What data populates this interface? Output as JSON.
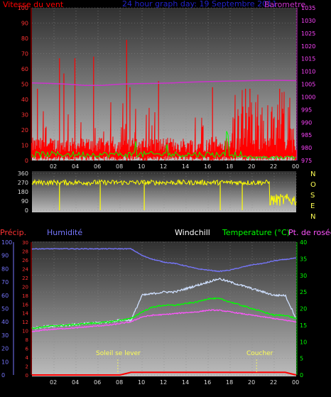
{
  "colors": {
    "background": "#000000",
    "wind": "#ff0000",
    "wind_avg": "#00ff00",
    "pressure": "#cc33cc",
    "wind_dir": "#ffff00",
    "precip": "#ff0000",
    "humidity": "#7777ff",
    "windchill": "#ffffff",
    "temperature": "#00ff00",
    "dewpoint": "#ff55ff",
    "temperature_box": "#cfe0ff"
  },
  "chart_data": [
    {
      "type": "line",
      "title": "24 hour graph day: 19 Septembre 2011",
      "ylabel_left": "Vitesse du vent",
      "ylabel_right": "Barometre",
      "x_ticks": [
        "02",
        "04",
        "06",
        "08",
        "10",
        "12",
        "14",
        "16",
        "18",
        "20",
        "22",
        "00"
      ],
      "ylim_left": [
        0,
        100
      ],
      "yticks_left": [
        "0",
        "10",
        "20",
        "30",
        "40",
        "50",
        "60",
        "70",
        "80",
        "90",
        "100"
      ],
      "ylim_right": [
        975,
        1035
      ],
      "yticks_right": [
        "975",
        "980",
        "985",
        "990",
        "995",
        "1000",
        "1005",
        "1010",
        "1015",
        "1020",
        "1025",
        "1030",
        "1035"
      ],
      "pressure": [
        1005.5,
        1005.3,
        1005.0,
        1004.5,
        1004.5,
        1005.0,
        1005.2,
        1005.3,
        1005.5,
        1005.8,
        1006.0,
        1006.2,
        1006.3,
        1006.5,
        1006.5,
        1006.4
      ],
      "wind_spikes": [
        {
          "hour": 0.5,
          "value": 47
        },
        {
          "hour": 2.5,
          "value": 67
        },
        {
          "hour": 2.9,
          "value": 57
        },
        {
          "hour": 3.9,
          "value": 67
        },
        {
          "hour": 5.6,
          "value": 68
        },
        {
          "hour": 8.6,
          "value": 79
        },
        {
          "hour": 8.9,
          "value": 48
        },
        {
          "hour": 11.5,
          "value": 52
        },
        {
          "hour": 16.4,
          "value": 48
        },
        {
          "hour": 19.4,
          "value": 47
        },
        {
          "hour": 19.8,
          "value": 47
        },
        {
          "hour": 22.5,
          "value": 47
        }
      ]
    },
    {
      "type": "line",
      "ylabel_right": "N O S E N",
      "direction_letters": [
        "N",
        "O",
        "S",
        "E",
        "N"
      ],
      "x_ticks": [],
      "ylim": [
        0,
        360
      ],
      "yticks": [
        "0",
        "90",
        "180",
        "270",
        "360"
      ],
      "wind_dir_base": 270
    },
    {
      "type": "line",
      "legend": {
        "precip": "Précip.",
        "humidity": "Humidité",
        "windchill": "Windchill",
        "temperature": "Temperature (°C)",
        "dewpoint": "Pt. de rosée"
      },
      "x_ticks": [
        "02",
        "04",
        "06",
        "08",
        "10",
        "12",
        "14",
        "16",
        "18",
        "20",
        "22",
        "00"
      ],
      "ylim_humidity": [
        0,
        100
      ],
      "yticks_humidity": [
        "0",
        "10",
        "20",
        "30",
        "40",
        "50",
        "60",
        "70",
        "80",
        "90",
        "100"
      ],
      "ylim_precip": [
        0,
        30
      ],
      "yticks_precip": [
        "0",
        "2",
        "4",
        "6",
        "8",
        "10",
        "12",
        "14",
        "16",
        "18",
        "20",
        "22",
        "24",
        "26",
        "28",
        "30"
      ],
      "ylim_temp": [
        0,
        40
      ],
      "yticks_temp": [
        "0",
        "5",
        "10",
        "15",
        "20",
        "25",
        "30",
        "35",
        "40"
      ],
      "annotations": {
        "sunrise": "Soleil se lever",
        "sunset": "Coucher"
      },
      "hours": [
        0,
        1,
        2,
        3,
        4,
        5,
        6,
        7,
        8,
        9,
        10,
        11,
        12,
        13,
        14,
        15,
        16,
        17,
        18,
        19,
        20,
        21,
        22,
        23,
        24
      ],
      "humidity": [
        95,
        95,
        95,
        95,
        95,
        95,
        95,
        95,
        95,
        95,
        90,
        87,
        85,
        84,
        82,
        80,
        79,
        78,
        79,
        81,
        83,
        84,
        86,
        87,
        88
      ],
      "temperature": [
        14,
        14.5,
        14.8,
        15,
        15.2,
        15.5,
        15.7,
        16,
        16.5,
        17,
        19,
        20.5,
        21,
        21,
        21.5,
        22,
        23,
        23,
        22,
        21,
        20,
        19,
        18,
        18,
        17
      ],
      "dewpoint": [
        13,
        13.5,
        13.8,
        14,
        14.2,
        14.5,
        14.8,
        15,
        15.5,
        16,
        17.5,
        18,
        18.2,
        18.5,
        18.8,
        19,
        19.5,
        19.5,
        19,
        18.5,
        18,
        17.5,
        17,
        16.5,
        16
      ],
      "windchill": [
        14,
        14.5,
        14.8,
        15,
        15.2,
        15.5,
        15.7,
        16,
        16.5,
        16.5,
        24,
        24.5,
        25,
        25,
        26,
        27,
        28,
        29,
        28,
        27,
        26,
        25,
        24,
        24,
        17
      ],
      "precip": [
        0,
        0,
        0,
        0,
        0,
        0,
        0,
        0,
        0,
        1,
        1,
        1,
        1,
        1,
        1,
        1,
        1,
        1,
        1,
        1,
        1,
        1,
        1,
        1,
        0
      ]
    }
  ]
}
